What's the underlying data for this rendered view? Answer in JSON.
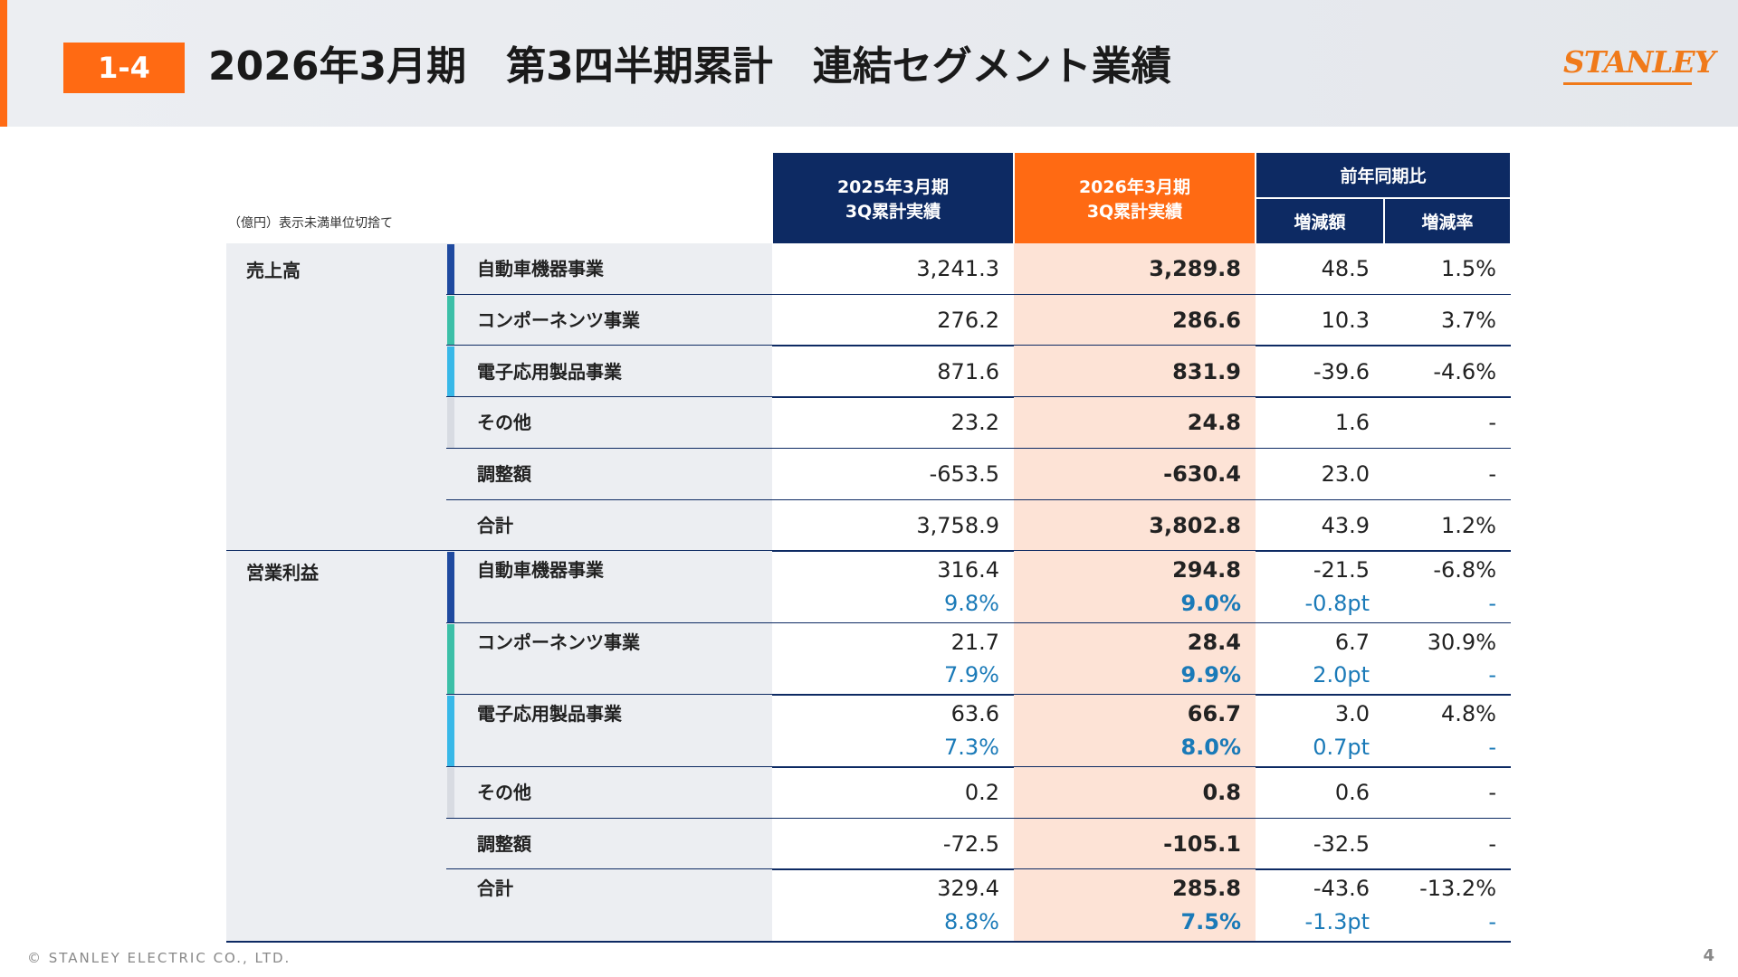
{
  "header": {
    "badge": "1-4",
    "title": "2026年3月期　第3四半期累計　連結セグメント業績",
    "logo": "STANLEY"
  },
  "table": {
    "note": "（億円）表示未満単位切捨て",
    "columns": [
      [
        "2025年3月期",
        "3Q累計実績"
      ],
      [
        "2026年3月期",
        "3Q累計実績"
      ]
    ],
    "group_header": "前年同期比",
    "sub_headers": [
      "増減額",
      "増減率"
    ],
    "sections": [
      {
        "label": "売上高",
        "rows": [
          {
            "name": "自動車機器事業",
            "accent": "#1f4aa0",
            "values": [
              "3,241.3",
              "3,289.8",
              "48.5",
              "1.5%"
            ]
          },
          {
            "name": "コンポーネンツ事業",
            "accent": "#3cbfa8",
            "values": [
              "276.2",
              "286.6",
              "10.3",
              "3.7%"
            ]
          },
          {
            "name": "電子応用製品事業",
            "accent": "#38b8e8",
            "values": [
              "871.6",
              "831.9",
              "-39.6",
              "-4.6%"
            ]
          },
          {
            "name": "その他",
            "accent": "#d8dbe2",
            "values": [
              "23.2",
              "24.8",
              "1.6",
              "-"
            ]
          },
          {
            "name": "調整額",
            "values": [
              "-653.5",
              "-630.4",
              "23.0",
              "-"
            ]
          },
          {
            "name": "合計",
            "values": [
              "3,758.9",
              "3,802.8",
              "43.9",
              "1.2%"
            ]
          }
        ]
      },
      {
        "label": "営業利益",
        "rows": [
          {
            "name": "自動車機器事業",
            "accent": "#1f4aa0",
            "values": [
              "316.4",
              "294.8",
              "-21.5",
              "-6.8%"
            ],
            "margin": [
              "9.8%",
              "9.0%",
              "-0.8pt",
              "-"
            ]
          },
          {
            "name": "コンポーネンツ事業",
            "accent": "#3cbfa8",
            "values": [
              "21.7",
              "28.4",
              "6.7",
              "30.9%"
            ],
            "margin": [
              "7.9%",
              "9.9%",
              "2.0pt",
              "-"
            ]
          },
          {
            "name": "電子応用製品事業",
            "accent": "#38b8e8",
            "values": [
              "63.6",
              "66.7",
              "3.0",
              "4.8%"
            ],
            "margin": [
              "7.3%",
              "8.0%",
              "0.7pt",
              "-"
            ]
          },
          {
            "name": "その他",
            "accent": "#d8dbe2",
            "values": [
              "0.2",
              "0.8",
              "0.6",
              "-"
            ]
          },
          {
            "name": "調整額",
            "values": [
              "-72.5",
              "-105.1",
              "-32.5",
              "-"
            ]
          },
          {
            "name": "合計",
            "values": [
              "329.4",
              "285.8",
              "-43.6",
              "-13.2%"
            ],
            "margin": [
              "8.8%",
              "7.5%",
              "-1.3pt",
              "-"
            ]
          }
        ]
      }
    ]
  },
  "footer": {
    "copyright": "© STANLEY ELECTRIC CO., LTD.",
    "page": "4"
  }
}
